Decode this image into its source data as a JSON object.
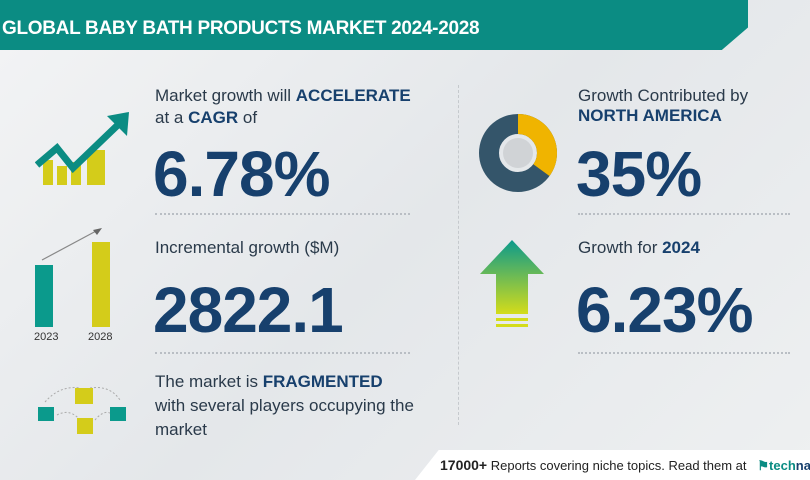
{
  "header": {
    "title": "GLOBAL BABY BATH PRODUCTS MARKET 2024-2028"
  },
  "cagr": {
    "line1_prefix": "Market growth will ",
    "line1_bold": "ACCELERATE",
    "line2_prefix": "at a ",
    "line2_bold": "CAGR",
    "line2_suffix": "  of",
    "value": "6.78%"
  },
  "incremental": {
    "label": "Incremental growth ($M)",
    "value": "2822.1",
    "bar_years": [
      "2023",
      "2028"
    ]
  },
  "fragmented": {
    "line1_prefix": "The market is ",
    "line1_bold": "FRAGMENTED",
    "line2": "with several players occupying the",
    "line3": "market"
  },
  "region": {
    "line1": "Growth Contributed by",
    "line2_bold": "NORTH AMERICA",
    "value": "35%",
    "share_percent": 35
  },
  "growth_year": {
    "label_prefix": "Growth for ",
    "label_bold": "2024",
    "value": "6.23%"
  },
  "footer": {
    "count": "17000+",
    "text": " Reports covering niche topics. Read them at",
    "logo_a": "tech",
    "logo_b": "navio"
  },
  "colors": {
    "teal": "#0b8c83",
    "navy": "#17406d",
    "yellow": "#d4cc1a",
    "donut_dark": "#34556a",
    "donut_yellow": "#f0b400"
  }
}
